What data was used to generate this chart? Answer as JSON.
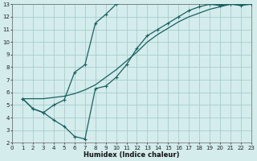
{
  "xlabel": "Humidex (Indice chaleur)",
  "bg_color": "#d4ecec",
  "grid_color": "#a8cccc",
  "line_color": "#1a6060",
  "xlim": [
    0,
    23
  ],
  "ylim": [
    2,
    13
  ],
  "xticks": [
    0,
    1,
    2,
    3,
    4,
    5,
    6,
    7,
    8,
    9,
    10,
    11,
    12,
    13,
    14,
    15,
    16,
    17,
    18,
    19,
    20,
    21,
    22,
    23
  ],
  "yticks": [
    2,
    3,
    4,
    5,
    6,
    7,
    8,
    9,
    10,
    11,
    12,
    13
  ],
  "line1_x": [
    1,
    2,
    3,
    4,
    5,
    6,
    7,
    8,
    9,
    10,
    11,
    12,
    13,
    14,
    15,
    16,
    17,
    18,
    19,
    20,
    21,
    22,
    23
  ],
  "line1_y": [
    5.5,
    4.7,
    4.4,
    5.0,
    5.4,
    7.6,
    8.2,
    11.5,
    12.2,
    13.0,
    13.2,
    13.3,
    13.35,
    13.25,
    13.25,
    13.2,
    13.35,
    13.1,
    13.0,
    12.9,
    13.0,
    12.9,
    13.0
  ],
  "line2_x": [
    1,
    2,
    3,
    4,
    5,
    6,
    7,
    8,
    9,
    10,
    11,
    12,
    13,
    14,
    15,
    16,
    17,
    18,
    19,
    20,
    21,
    22,
    23
  ],
  "line2_y": [
    5.5,
    4.7,
    4.4,
    3.8,
    3.3,
    2.5,
    2.3,
    6.3,
    6.5,
    7.2,
    8.2,
    9.5,
    10.5,
    11.0,
    11.5,
    12.0,
    12.5,
    12.8,
    13.0,
    13.0,
    13.0,
    13.0,
    13.0
  ],
  "line3_x": [
    1,
    2,
    3,
    4,
    5,
    6,
    7,
    8,
    9,
    10,
    11,
    12,
    13,
    14,
    15,
    16,
    17,
    18,
    19,
    20,
    21,
    22,
    23
  ],
  "line3_y": [
    5.5,
    5.5,
    5.5,
    5.6,
    5.7,
    5.9,
    6.2,
    6.6,
    7.2,
    7.8,
    8.5,
    9.2,
    10.0,
    10.6,
    11.1,
    11.6,
    12.0,
    12.3,
    12.6,
    12.8,
    13.0,
    13.0,
    13.0
  ]
}
